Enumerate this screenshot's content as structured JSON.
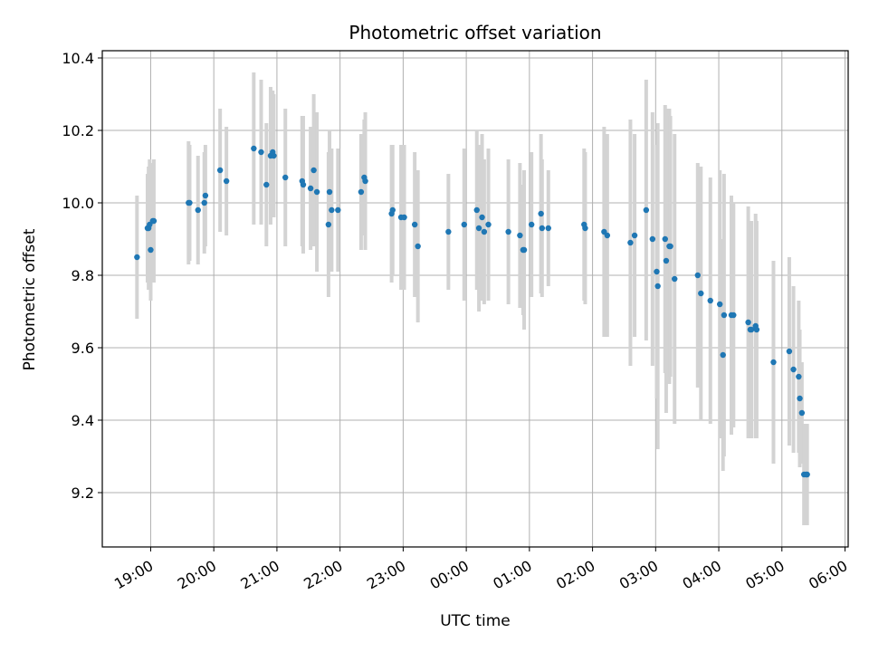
{
  "chart_data": {
    "type": "scatter",
    "title": "Photometric offset variation",
    "xlabel": "UTC time",
    "ylabel": "Photometric offset",
    "x_tick_labels": [
      "19:00",
      "20:00",
      "21:00",
      "22:00",
      "23:00",
      "00:00",
      "01:00",
      "02:00",
      "03:00",
      "04:00",
      "05:00",
      "06:00"
    ],
    "x_ticks": [
      "2023-01-01T19:00",
      "2023-01-01T20:00",
      "2023-01-01T21:00",
      "2023-01-01T22:00",
      "2023-01-01T23:00",
      "2023-01-02T00:00",
      "2023-01-02T01:00",
      "2023-01-02T02:00",
      "2023-01-02T03:00",
      "2023-01-02T04:00",
      "2023-01-02T05:00",
      "2023-01-02T06:00"
    ],
    "xlim": [
      "2023-01-01T18:14",
      "2023-01-02T06:03"
    ],
    "y_ticks": [
      9.2,
      9.4,
      9.6,
      9.8,
      10.0,
      10.2,
      10.4
    ],
    "y_tick_labels": [
      "9.2",
      "9.4",
      "9.6",
      "9.8",
      "10.0",
      "10.2",
      "10.4"
    ],
    "ylim": [
      9.05,
      10.42
    ],
    "grid": true,
    "colors": {
      "point": "#1f77b4",
      "errorbar": "#d3d3d3",
      "grid": "#b0b0b0"
    },
    "series": [
      {
        "x": [
          "2023-01-01T18:47",
          "2023-01-01T18:57",
          "2023-01-01T18:58",
          "2023-01-01T18:59",
          "2023-01-01T19:00",
          "2023-01-01T19:02",
          "2023-01-01T19:03",
          "2023-01-01T19:36",
          "2023-01-01T19:37",
          "2023-01-01T19:45",
          "2023-01-01T19:51",
          "2023-01-01T19:52",
          "2023-01-01T20:06",
          "2023-01-01T20:12",
          "2023-01-01T20:38",
          "2023-01-01T20:45",
          "2023-01-01T20:50",
          "2023-01-01T20:54",
          "2023-01-01T20:56",
          "2023-01-01T20:57",
          "2023-01-01T21:08",
          "2023-01-01T21:24",
          "2023-01-01T21:25",
          "2023-01-01T21:32",
          "2023-01-01T21:35",
          "2023-01-01T21:38",
          "2023-01-01T21:49",
          "2023-01-01T21:50",
          "2023-01-01T21:52",
          "2023-01-01T21:58",
          "2023-01-01T22:20",
          "2023-01-01T22:23",
          "2023-01-01T22:24",
          "2023-01-01T22:49",
          "2023-01-01T22:50",
          "2023-01-01T22:58",
          "2023-01-01T23:01",
          "2023-01-01T23:11",
          "2023-01-01T23:14",
          "2023-01-01T23:43",
          "2023-01-01T23:58",
          "2023-01-02T00:10",
          "2023-01-02T00:12",
          "2023-01-02T00:15",
          "2023-01-02T00:17",
          "2023-01-02T00:21",
          "2023-01-02T00:40",
          "2023-01-02T00:51",
          "2023-01-02T00:54",
          "2023-01-02T00:55",
          "2023-01-02T01:02",
          "2023-01-02T01:11",
          "2023-01-02T01:12",
          "2023-01-02T01:18",
          "2023-01-02T01:52",
          "2023-01-02T01:53",
          "2023-01-02T02:11",
          "2023-01-02T02:14",
          "2023-01-02T02:36",
          "2023-01-02T02:40",
          "2023-01-02T02:51",
          "2023-01-02T02:57",
          "2023-01-02T03:01",
          "2023-01-02T03:02",
          "2023-01-02T03:09",
          "2023-01-02T03:10",
          "2023-01-02T03:13",
          "2023-01-02T03:14",
          "2023-01-02T03:18",
          "2023-01-02T03:40",
          "2023-01-02T03:43",
          "2023-01-02T03:52",
          "2023-01-02T04:01",
          "2023-01-02T04:04",
          "2023-01-02T04:05",
          "2023-01-02T04:12",
          "2023-01-02T04:14",
          "2023-01-02T04:28",
          "2023-01-02T04:30",
          "2023-01-02T04:31",
          "2023-01-02T04:35",
          "2023-01-02T04:36",
          "2023-01-02T04:52",
          "2023-01-02T05:07",
          "2023-01-02T05:11",
          "2023-01-02T05:16",
          "2023-01-02T05:17",
          "2023-01-02T05:19",
          "2023-01-02T05:21",
          "2023-01-02T05:23",
          "2023-01-02T05:24"
        ],
        "y": [
          9.85,
          9.93,
          9.93,
          9.94,
          9.87,
          9.95,
          9.95,
          10.0,
          10.0,
          9.98,
          10.0,
          10.02,
          10.09,
          10.06,
          10.15,
          10.14,
          10.05,
          10.13,
          10.14,
          10.13,
          10.07,
          10.06,
          10.05,
          10.04,
          10.09,
          10.03,
          9.94,
          10.03,
          9.98,
          9.98,
          10.03,
          10.07,
          10.06,
          9.97,
          9.98,
          9.96,
          9.96,
          9.94,
          9.88,
          9.92,
          9.94,
          9.98,
          9.93,
          9.96,
          9.92,
          9.94,
          9.92,
          9.91,
          9.87,
          9.87,
          9.94,
          9.97,
          9.93,
          9.93,
          9.94,
          9.93,
          9.92,
          9.91,
          9.89,
          9.91,
          9.98,
          9.9,
          9.81,
          9.77,
          9.9,
          9.84,
          9.88,
          9.88,
          9.79,
          9.8,
          9.75,
          9.73,
          9.72,
          9.58,
          9.69,
          9.69,
          9.69,
          9.67,
          9.65,
          9.65,
          9.66,
          9.65,
          9.56,
          9.59,
          9.54,
          9.52,
          9.46,
          9.42,
          9.25,
          9.25,
          9.25
        ],
        "yerr": [
          0.17,
          0.15,
          0.17,
          0.18,
          0.14,
          0.16,
          0.17,
          0.17,
          0.16,
          0.15,
          0.14,
          0.14,
          0.17,
          0.15,
          0.21,
          0.2,
          0.17,
          0.19,
          0.17,
          0.17,
          0.19,
          0.18,
          0.19,
          0.17,
          0.21,
          0.22,
          0.2,
          0.17,
          0.17,
          0.17,
          0.16,
          0.16,
          0.19,
          0.19,
          0.18,
          0.2,
          0.2,
          0.2,
          0.21,
          0.16,
          0.21,
          0.22,
          0.23,
          0.23,
          0.2,
          0.21,
          0.2,
          0.2,
          0.18,
          0.22,
          0.2,
          0.22,
          0.19,
          0.16,
          0.21,
          0.21,
          0.29,
          0.28,
          0.34,
          0.28,
          0.36,
          0.35,
          0.35,
          0.45,
          0.37,
          0.42,
          0.38,
          0.36,
          0.4,
          0.31,
          0.35,
          0.34,
          0.37,
          0.32,
          0.39,
          0.33,
          0.31,
          0.32,
          0.3,
          0.3,
          0.31,
          0.3,
          0.28,
          0.26,
          0.23,
          0.21,
          0.19,
          0.14,
          0.14,
          0.14,
          0.14
        ]
      }
    ]
  }
}
